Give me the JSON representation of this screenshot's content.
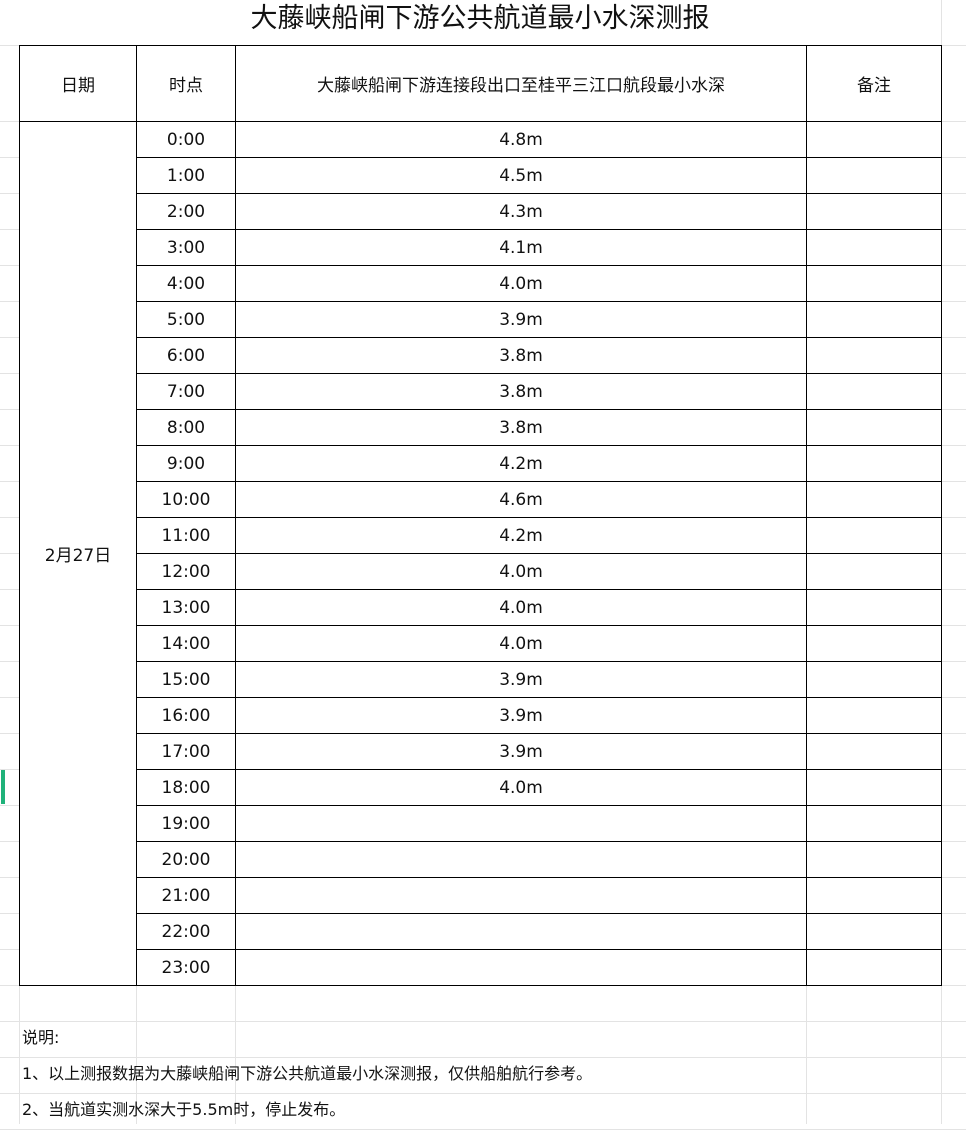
{
  "title": "大藤峡船闸下游公共航道最小水深测报",
  "headers": {
    "date": "日期",
    "time": "时点",
    "depth": "大藤峡船闸下游连接段出口至桂平三江口航段最小水深",
    "remark": "备注"
  },
  "date": "2月27日",
  "rows": [
    {
      "time": "0:00",
      "depth": "4.8m"
    },
    {
      "time": "1:00",
      "depth": "4.5m"
    },
    {
      "time": "2:00",
      "depth": "4.3m"
    },
    {
      "time": "3:00",
      "depth": "4.1m"
    },
    {
      "time": "4:00",
      "depth": "4.0m"
    },
    {
      "time": "5:00",
      "depth": "3.9m"
    },
    {
      "time": "6:00",
      "depth": "3.8m"
    },
    {
      "time": "7:00",
      "depth": "3.8m"
    },
    {
      "time": "8:00",
      "depth": "3.8m"
    },
    {
      "time": "9:00",
      "depth": "4.2m"
    },
    {
      "time": "10:00",
      "depth": "4.6m"
    },
    {
      "time": "11:00",
      "depth": "4.2m"
    },
    {
      "time": "12:00",
      "depth": "4.0m"
    },
    {
      "time": "13:00",
      "depth": "4.0m"
    },
    {
      "time": "14:00",
      "depth": "4.0m"
    },
    {
      "time": "15:00",
      "depth": "3.9m"
    },
    {
      "time": "16:00",
      "depth": "3.9m"
    },
    {
      "time": "17:00",
      "depth": "3.9m"
    },
    {
      "time": "18:00",
      "depth": "4.0m"
    },
    {
      "time": "19:00",
      "depth": ""
    },
    {
      "time": "20:00",
      "depth": ""
    },
    {
      "time": "21:00",
      "depth": ""
    },
    {
      "time": "22:00",
      "depth": ""
    },
    {
      "time": "23:00",
      "depth": ""
    }
  ],
  "notes": {
    "heading": "说明:",
    "items": [
      "1、以上测报数据为大藤峡船闸下游公共航道最小水深测报，仅供船舶航行参考。",
      "2、当航道实测水深大于5.5m时，停止发布。"
    ]
  },
  "colors": {
    "selection_marker": "#1fb27a",
    "gridline": "#e3e3e3"
  }
}
